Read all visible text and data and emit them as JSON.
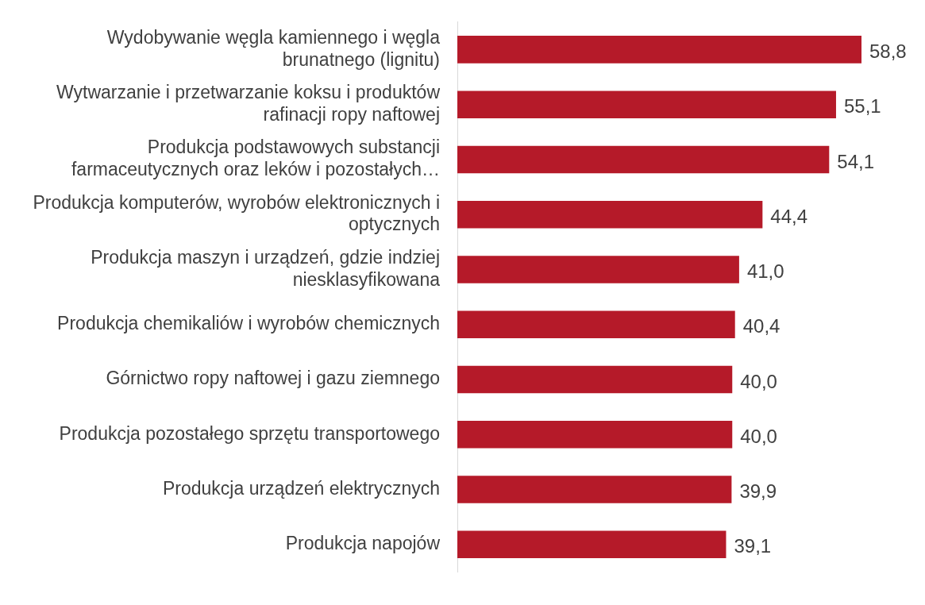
{
  "chart_data": {
    "type": "bar",
    "orientation": "horizontal",
    "categories": [
      "Wydobywanie węgla kamiennego i węgla brunatnego (lignitu)",
      "Wytwarzanie i przetwarzanie koksu i produktów rafinacji ropy naftowej",
      "Produkcja podstawowych substancji farmaceutycznych oraz leków i pozostałych…",
      "Produkcja komputerów, wyrobów elektronicznych i optycznych",
      "Produkcja maszyn i urządzeń, gdzie indziej niesklasyfikowana",
      "Produkcja chemikaliów i wyrobów chemicznych",
      "Górnictwo ropy naftowej i gazu ziemnego",
      "Produkcja pozostałego sprzętu transportowego",
      "Produkcja urządzeń elektrycznych",
      "Produkcja napojów"
    ],
    "values": [
      58.8,
      55.1,
      54.1,
      44.4,
      41.0,
      40.4,
      40.0,
      40.0,
      39.9,
      39.1
    ],
    "value_labels": [
      "58,8",
      "55,1",
      "54,1",
      "44,4",
      "41,0",
      "40,4",
      "40,0",
      "40,0",
      "39,9",
      "39,1"
    ],
    "color": "#b51a29"
  }
}
